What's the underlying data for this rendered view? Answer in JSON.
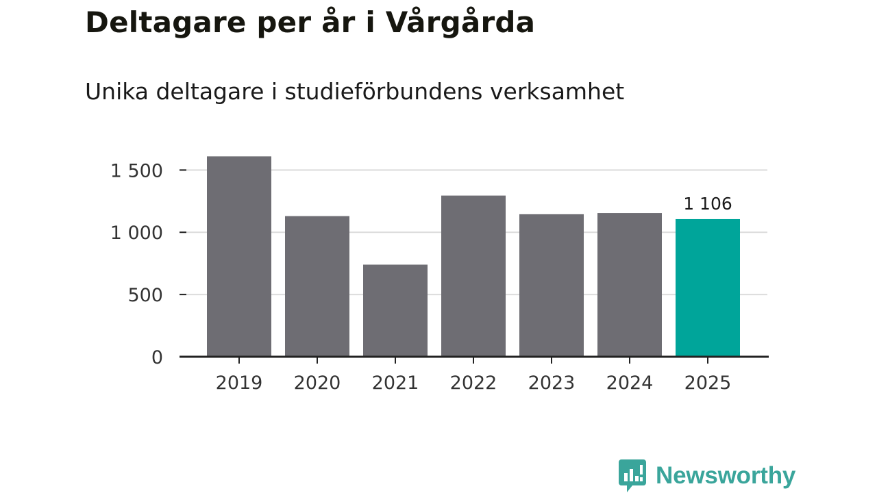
{
  "title": "Deltagare per år i Vårgårda",
  "subtitle": "Unika deltagare i studieförbundens verksamhet",
  "chart_data": {
    "type": "bar",
    "categories": [
      "2019",
      "2020",
      "2021",
      "2022",
      "2023",
      "2024",
      "2025"
    ],
    "values": [
      1610,
      1130,
      740,
      1295,
      1145,
      1155,
      1106
    ],
    "ylim": [
      0,
      1700
    ],
    "yticks": [
      0,
      500,
      1000,
      1500
    ],
    "ytick_labels": [
      "0",
      "500",
      "1 000",
      "1 500"
    ],
    "grid": true,
    "highlight_index": 6,
    "data_labels": [
      {
        "index": 6,
        "text": "1 106"
      }
    ],
    "xlabel": "",
    "ylabel": ""
  },
  "colors": {
    "bar": "#6e6d73",
    "highlight": "#00a59a",
    "grid": "#dcdcdc",
    "axis": "#222222",
    "logo": "#3aa59b"
  },
  "brand": {
    "name": "Newsworthy",
    "icon": "bar-chart-speech-bubble-icon"
  }
}
